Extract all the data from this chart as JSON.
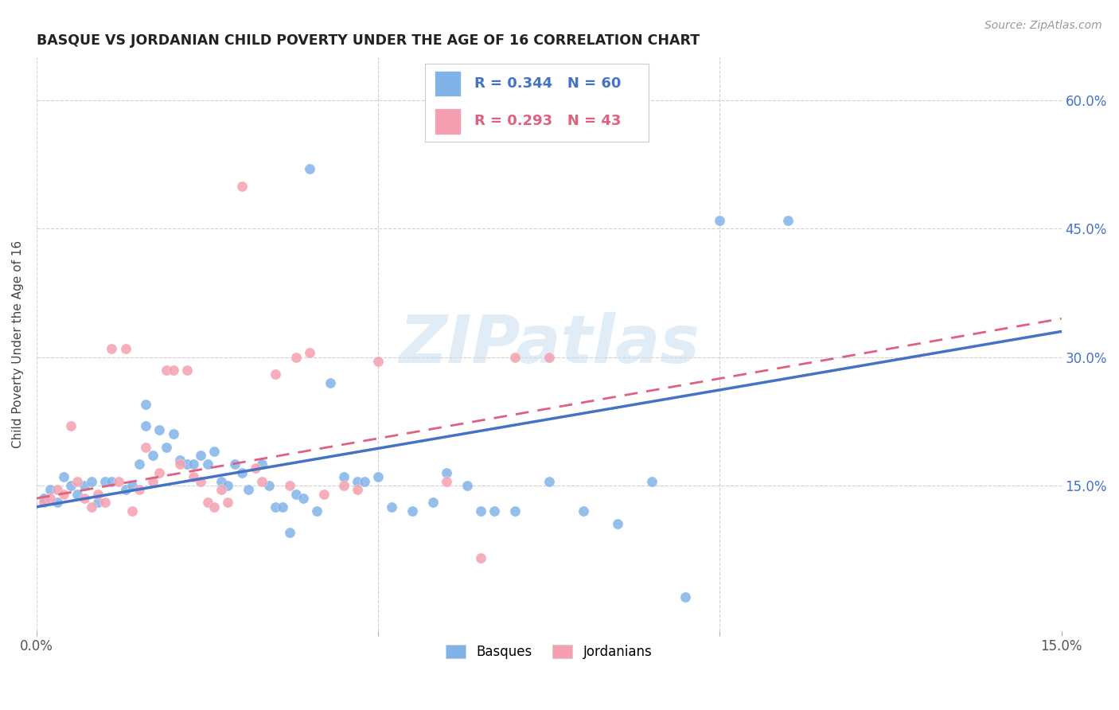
{
  "title": "BASQUE VS JORDANIAN CHILD POVERTY UNDER THE AGE OF 16 CORRELATION CHART",
  "source": "Source: ZipAtlas.com",
  "ylabel": "Child Poverty Under the Age of 16",
  "xlim": [
    0.0,
    0.15
  ],
  "ylim": [
    -0.02,
    0.65
  ],
  "xtick_positions": [
    0.0,
    0.05,
    0.1,
    0.15
  ],
  "xtick_labels": [
    "0.0%",
    "",
    "",
    "15.0%"
  ],
  "ytick_positions": [
    0.15,
    0.3,
    0.45,
    0.6
  ],
  "ytick_labels": [
    "15.0%",
    "30.0%",
    "45.0%",
    "60.0%"
  ],
  "basque_color": "#82B3E8",
  "jordanian_color": "#F5A0B0",
  "basque_line_color": "#4472C4",
  "jordanian_line_color": "#E06080",
  "R_basque": "0.344",
  "N_basque": "60",
  "R_jordanian": "0.293",
  "N_jordanian": "43",
  "watermark": "ZIPatlas",
  "basque_line": {
    "x0": 0.0,
    "y0": 0.125,
    "x1": 0.15,
    "y1": 0.33
  },
  "jordanian_line": {
    "x0": 0.0,
    "y0": 0.135,
    "x1": 0.15,
    "y1": 0.345
  },
  "basque_points": [
    [
      0.001,
      0.135
    ],
    [
      0.002,
      0.145
    ],
    [
      0.003,
      0.13
    ],
    [
      0.004,
      0.16
    ],
    [
      0.005,
      0.15
    ],
    [
      0.006,
      0.14
    ],
    [
      0.007,
      0.15
    ],
    [
      0.008,
      0.155
    ],
    [
      0.009,
      0.13
    ],
    [
      0.01,
      0.155
    ],
    [
      0.011,
      0.155
    ],
    [
      0.013,
      0.145
    ],
    [
      0.014,
      0.15
    ],
    [
      0.015,
      0.175
    ],
    [
      0.016,
      0.245
    ],
    [
      0.016,
      0.22
    ],
    [
      0.017,
      0.185
    ],
    [
      0.018,
      0.215
    ],
    [
      0.019,
      0.195
    ],
    [
      0.02,
      0.21
    ],
    [
      0.021,
      0.18
    ],
    [
      0.022,
      0.175
    ],
    [
      0.023,
      0.175
    ],
    [
      0.024,
      0.185
    ],
    [
      0.025,
      0.175
    ],
    [
      0.026,
      0.19
    ],
    [
      0.027,
      0.155
    ],
    [
      0.028,
      0.15
    ],
    [
      0.029,
      0.175
    ],
    [
      0.03,
      0.165
    ],
    [
      0.031,
      0.145
    ],
    [
      0.033,
      0.175
    ],
    [
      0.034,
      0.15
    ],
    [
      0.035,
      0.125
    ],
    [
      0.036,
      0.125
    ],
    [
      0.037,
      0.095
    ],
    [
      0.038,
      0.14
    ],
    [
      0.039,
      0.135
    ],
    [
      0.04,
      0.52
    ],
    [
      0.041,
      0.12
    ],
    [
      0.043,
      0.27
    ],
    [
      0.045,
      0.16
    ],
    [
      0.047,
      0.155
    ],
    [
      0.048,
      0.155
    ],
    [
      0.05,
      0.16
    ],
    [
      0.052,
      0.125
    ],
    [
      0.055,
      0.12
    ],
    [
      0.058,
      0.13
    ],
    [
      0.06,
      0.165
    ],
    [
      0.063,
      0.15
    ],
    [
      0.065,
      0.12
    ],
    [
      0.067,
      0.12
    ],
    [
      0.07,
      0.12
    ],
    [
      0.075,
      0.155
    ],
    [
      0.08,
      0.12
    ],
    [
      0.085,
      0.105
    ],
    [
      0.09,
      0.155
    ],
    [
      0.095,
      0.02
    ],
    [
      0.1,
      0.46
    ],
    [
      0.11,
      0.46
    ]
  ],
  "jordanian_points": [
    [
      0.001,
      0.13
    ],
    [
      0.002,
      0.135
    ],
    [
      0.003,
      0.145
    ],
    [
      0.004,
      0.14
    ],
    [
      0.005,
      0.22
    ],
    [
      0.006,
      0.155
    ],
    [
      0.007,
      0.135
    ],
    [
      0.008,
      0.125
    ],
    [
      0.009,
      0.14
    ],
    [
      0.01,
      0.13
    ],
    [
      0.011,
      0.31
    ],
    [
      0.012,
      0.155
    ],
    [
      0.013,
      0.31
    ],
    [
      0.014,
      0.12
    ],
    [
      0.015,
      0.145
    ],
    [
      0.016,
      0.195
    ],
    [
      0.017,
      0.155
    ],
    [
      0.018,
      0.165
    ],
    [
      0.019,
      0.285
    ],
    [
      0.02,
      0.285
    ],
    [
      0.021,
      0.175
    ],
    [
      0.022,
      0.285
    ],
    [
      0.023,
      0.16
    ],
    [
      0.024,
      0.155
    ],
    [
      0.025,
      0.13
    ],
    [
      0.026,
      0.125
    ],
    [
      0.027,
      0.145
    ],
    [
      0.028,
      0.13
    ],
    [
      0.03,
      0.5
    ],
    [
      0.032,
      0.17
    ],
    [
      0.033,
      0.155
    ],
    [
      0.035,
      0.28
    ],
    [
      0.037,
      0.15
    ],
    [
      0.038,
      0.3
    ],
    [
      0.04,
      0.305
    ],
    [
      0.042,
      0.14
    ],
    [
      0.045,
      0.15
    ],
    [
      0.047,
      0.145
    ],
    [
      0.05,
      0.295
    ],
    [
      0.06,
      0.155
    ],
    [
      0.065,
      0.065
    ],
    [
      0.07,
      0.3
    ],
    [
      0.075,
      0.3
    ]
  ]
}
